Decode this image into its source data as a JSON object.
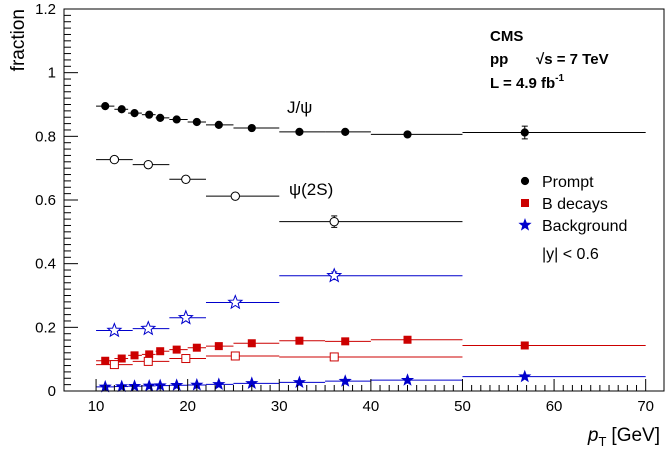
{
  "chart_data": {
    "type": "scatter",
    "xlabel": "p",
    "xlabel_sub": "T",
    "xlabel_unit": "[GeV]",
    "ylabel": "fraction",
    "xlim": [
      6.5,
      72
    ],
    "ylim": [
      0,
      1.2
    ],
    "xticks": [
      "10",
      "20",
      "30",
      "40",
      "50",
      "60",
      "70"
    ],
    "yticks": [
      "0",
      "0.2",
      "0.4",
      "0.6",
      "0.8",
      "1",
      "1.2"
    ],
    "header": {
      "experiment": "CMS",
      "system": "pp",
      "energy": "√s = 7 TeV",
      "lumi_pre": "L  =  4.9 fb",
      "lumi_sup": "-1"
    },
    "annotations": {
      "jpsi": "J/ψ",
      "psi2s": "ψ(2S)",
      "rapidity": "|y| < 0.6"
    },
    "legend": [
      {
        "label": "Prompt",
        "marker": "circle",
        "color": "#000000"
      },
      {
        "label": "B decays",
        "marker": "square",
        "color": "#cc0000"
      },
      {
        "label": "Background",
        "marker": "star",
        "color": "#0000cc"
      }
    ],
    "series": [
      {
        "state": "J/ψ",
        "component": "Prompt",
        "color": "#000000",
        "marker": "circle",
        "filled": true,
        "points": [
          {
            "x": 11.0,
            "xlo": 10.0,
            "xhi": 12.0,
            "y": 0.895,
            "err": 0.005
          },
          {
            "x": 12.8,
            "xlo": 12.0,
            "xhi": 13.5,
            "y": 0.885,
            "err": 0.005
          },
          {
            "x": 14.2,
            "xlo": 13.5,
            "xhi": 15.0,
            "y": 0.873,
            "err": 0.005
          },
          {
            "x": 15.8,
            "xlo": 15.0,
            "xhi": 16.5,
            "y": 0.868,
            "err": 0.005
          },
          {
            "x": 17.0,
            "xlo": 16.5,
            "xhi": 18.0,
            "y": 0.858,
            "err": 0.005
          },
          {
            "x": 18.8,
            "xlo": 18.0,
            "xhi": 20.0,
            "y": 0.853,
            "err": 0.005
          },
          {
            "x": 21.0,
            "xlo": 20.0,
            "xhi": 22.0,
            "y": 0.845,
            "err": 0.005
          },
          {
            "x": 23.4,
            "xlo": 22.0,
            "xhi": 25.0,
            "y": 0.836,
            "err": 0.005
          },
          {
            "x": 27.0,
            "xlo": 25.0,
            "xhi": 30.0,
            "y": 0.826,
            "err": 0.006
          },
          {
            "x": 32.2,
            "xlo": 30.0,
            "xhi": 35.0,
            "y": 0.814,
            "err": 0.006
          },
          {
            "x": 37.2,
            "xlo": 35.0,
            "xhi": 40.0,
            "y": 0.814,
            "err": 0.007
          },
          {
            "x": 44.0,
            "xlo": 40.0,
            "xhi": 50.0,
            "y": 0.806,
            "err": 0.008
          },
          {
            "x": 56.8,
            "xlo": 50.0,
            "xhi": 70.0,
            "y": 0.812,
            "err": 0.02
          }
        ]
      },
      {
        "state": "J/ψ",
        "component": "B decays",
        "color": "#cc0000",
        "marker": "square",
        "filled": true,
        "points": [
          {
            "x": 11.0,
            "xlo": 10.0,
            "xhi": 12.0,
            "y": 0.095,
            "err": 0.005
          },
          {
            "x": 12.8,
            "xlo": 12.0,
            "xhi": 13.5,
            "y": 0.102,
            "err": 0.005
          },
          {
            "x": 14.2,
            "xlo": 13.5,
            "xhi": 15.0,
            "y": 0.112,
            "err": 0.005
          },
          {
            "x": 15.8,
            "xlo": 15.0,
            "xhi": 16.5,
            "y": 0.115,
            "err": 0.005
          },
          {
            "x": 17.0,
            "xlo": 16.5,
            "xhi": 18.0,
            "y": 0.125,
            "err": 0.005
          },
          {
            "x": 18.8,
            "xlo": 18.0,
            "xhi": 20.0,
            "y": 0.13,
            "err": 0.005
          },
          {
            "x": 21.0,
            "xlo": 20.0,
            "xhi": 22.0,
            "y": 0.136,
            "err": 0.005
          },
          {
            "x": 23.4,
            "xlo": 22.0,
            "xhi": 25.0,
            "y": 0.141,
            "err": 0.005
          },
          {
            "x": 27.0,
            "xlo": 25.0,
            "xhi": 30.0,
            "y": 0.15,
            "err": 0.006
          },
          {
            "x": 32.2,
            "xlo": 30.0,
            "xhi": 35.0,
            "y": 0.158,
            "err": 0.006
          },
          {
            "x": 37.2,
            "xlo": 35.0,
            "xhi": 40.0,
            "y": 0.156,
            "err": 0.006
          },
          {
            "x": 44.0,
            "xlo": 40.0,
            "xhi": 50.0,
            "y": 0.161,
            "err": 0.007
          },
          {
            "x": 56.8,
            "xlo": 50.0,
            "xhi": 70.0,
            "y": 0.143,
            "err": 0.008
          }
        ]
      },
      {
        "state": "J/ψ",
        "component": "Background",
        "color": "#0000cc",
        "marker": "star",
        "filled": true,
        "points": [
          {
            "x": 11.0,
            "xlo": 10.0,
            "xhi": 12.0,
            "y": 0.013,
            "err": 0.002
          },
          {
            "x": 12.8,
            "xlo": 12.0,
            "xhi": 13.5,
            "y": 0.014,
            "err": 0.002
          },
          {
            "x": 14.2,
            "xlo": 13.5,
            "xhi": 15.0,
            "y": 0.015,
            "err": 0.002
          },
          {
            "x": 15.8,
            "xlo": 15.0,
            "xhi": 16.5,
            "y": 0.016,
            "err": 0.002
          },
          {
            "x": 17.0,
            "xlo": 16.5,
            "xhi": 18.0,
            "y": 0.017,
            "err": 0.002
          },
          {
            "x": 18.8,
            "xlo": 18.0,
            "xhi": 20.0,
            "y": 0.018,
            "err": 0.002
          },
          {
            "x": 21.0,
            "xlo": 20.0,
            "xhi": 22.0,
            "y": 0.019,
            "err": 0.002
          },
          {
            "x": 23.4,
            "xlo": 22.0,
            "xhi": 25.0,
            "y": 0.021,
            "err": 0.002
          },
          {
            "x": 27.0,
            "xlo": 25.0,
            "xhi": 30.0,
            "y": 0.024,
            "err": 0.002
          },
          {
            "x": 32.2,
            "xlo": 30.0,
            "xhi": 35.0,
            "y": 0.027,
            "err": 0.002
          },
          {
            "x": 37.2,
            "xlo": 35.0,
            "xhi": 40.0,
            "y": 0.031,
            "err": 0.003
          },
          {
            "x": 44.0,
            "xlo": 40.0,
            "xhi": 50.0,
            "y": 0.034,
            "err": 0.003
          },
          {
            "x": 56.8,
            "xlo": 50.0,
            "xhi": 70.0,
            "y": 0.045,
            "err": 0.004
          }
        ]
      },
      {
        "state": "ψ(2S)",
        "component": "Prompt",
        "color": "#000000",
        "marker": "circle",
        "filled": false,
        "points": [
          {
            "x": 12.0,
            "xlo": 10.0,
            "xhi": 14.0,
            "y": 0.727,
            "err": 0.005
          },
          {
            "x": 15.7,
            "xlo": 14.0,
            "xhi": 18.0,
            "y": 0.711,
            "err": 0.005
          },
          {
            "x": 19.8,
            "xlo": 18.0,
            "xhi": 22.0,
            "y": 0.665,
            "err": 0.006
          },
          {
            "x": 25.2,
            "xlo": 22.0,
            "xhi": 30.0,
            "y": 0.612,
            "err": 0.008
          },
          {
            "x": 36.0,
            "xlo": 30.0,
            "xhi": 50.0,
            "y": 0.532,
            "err": 0.018
          }
        ]
      },
      {
        "state": "ψ(2S)",
        "component": "B decays",
        "color": "#cc0000",
        "marker": "square",
        "filled": false,
        "points": [
          {
            "x": 12.0,
            "xlo": 10.0,
            "xhi": 14.0,
            "y": 0.083,
            "err": 0.004
          },
          {
            "x": 15.7,
            "xlo": 14.0,
            "xhi": 18.0,
            "y": 0.093,
            "err": 0.004
          },
          {
            "x": 19.8,
            "xlo": 18.0,
            "xhi": 22.0,
            "y": 0.102,
            "err": 0.005
          },
          {
            "x": 25.2,
            "xlo": 22.0,
            "xhi": 30.0,
            "y": 0.11,
            "err": 0.005
          },
          {
            "x": 36.0,
            "xlo": 30.0,
            "xhi": 50.0,
            "y": 0.107,
            "err": 0.007
          }
        ]
      },
      {
        "state": "ψ(2S)",
        "component": "Background",
        "color": "#0000cc",
        "marker": "star",
        "filled": false,
        "points": [
          {
            "x": 12.0,
            "xlo": 10.0,
            "xhi": 14.0,
            "y": 0.19,
            "err": 0.005
          },
          {
            "x": 15.7,
            "xlo": 14.0,
            "xhi": 18.0,
            "y": 0.196,
            "err": 0.005
          },
          {
            "x": 19.8,
            "xlo": 18.0,
            "xhi": 22.0,
            "y": 0.23,
            "err": 0.006
          },
          {
            "x": 25.2,
            "xlo": 22.0,
            "xhi": 30.0,
            "y": 0.278,
            "err": 0.007
          },
          {
            "x": 36.0,
            "xlo": 30.0,
            "xhi": 50.0,
            "y": 0.362,
            "err": 0.012
          }
        ]
      }
    ]
  }
}
